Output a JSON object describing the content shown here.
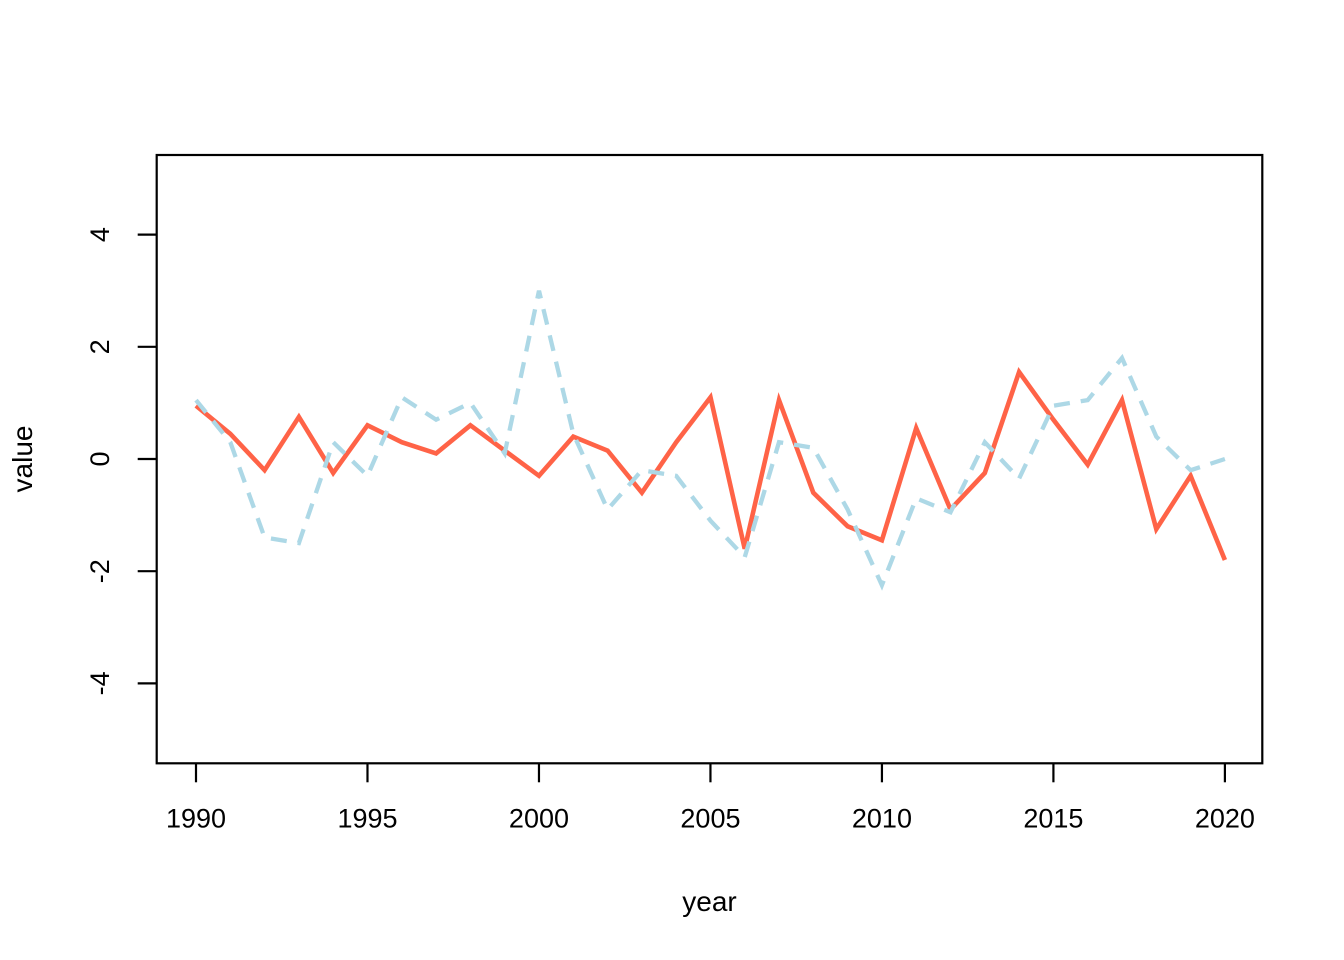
{
  "chart_data": {
    "type": "line",
    "title": "",
    "xlabel": "year",
    "ylabel": "value",
    "grid": false,
    "legend": "none",
    "background_color": "#FFFFFF",
    "axis_color": "#000000",
    "xlim": [
      1988.8,
      2021.2
    ],
    "ylim": [
      -5.4,
      5.4
    ],
    "x_ticks": [
      1990,
      1995,
      2000,
      2005,
      2010,
      2015,
      2020
    ],
    "y_ticks": [
      4,
      2,
      0,
      -2,
      -4
    ],
    "x": [
      1990,
      1991,
      1992,
      1993,
      1994,
      1995,
      1996,
      1997,
      1998,
      1999,
      2000,
      2001,
      2002,
      2003,
      2004,
      2005,
      2006,
      2007,
      2008,
      2009,
      2010,
      2011,
      2012,
      2013,
      2014,
      2015,
      2016,
      2017,
      2018,
      2019,
      2020
    ],
    "series": [
      {
        "name": "solid-red-series",
        "color": "#FF6347",
        "style": "solid",
        "line_width": 4.6,
        "values": [
          0.95,
          0.45,
          -0.2,
          0.75,
          -0.25,
          0.6,
          0.3,
          0.1,
          0.6,
          0.15,
          -0.3,
          0.4,
          0.15,
          -0.6,
          0.3,
          1.1,
          -1.6,
          1.05,
          -0.6,
          -1.2,
          -1.45,
          0.55,
          -0.9,
          -0.25,
          1.55,
          0.7,
          -0.1,
          1.05,
          -1.25,
          -0.3,
          -1.8
        ]
      },
      {
        "name": "dashed-lightblue-series",
        "color": "#ADD8E6",
        "style": "dashed",
        "line_width": 4.3,
        "values": [
          1.05,
          0.3,
          -1.4,
          -1.5,
          0.3,
          -0.3,
          1.1,
          0.7,
          1.0,
          0.1,
          3.0,
          0.45,
          -0.9,
          -0.2,
          -0.3,
          -1.1,
          -1.75,
          0.3,
          0.2,
          -0.9,
          -2.25,
          -0.7,
          -0.95,
          0.3,
          -0.35,
          0.95,
          1.05,
          1.8,
          0.4,
          -0.2,
          0.0
        ]
      }
    ]
  }
}
